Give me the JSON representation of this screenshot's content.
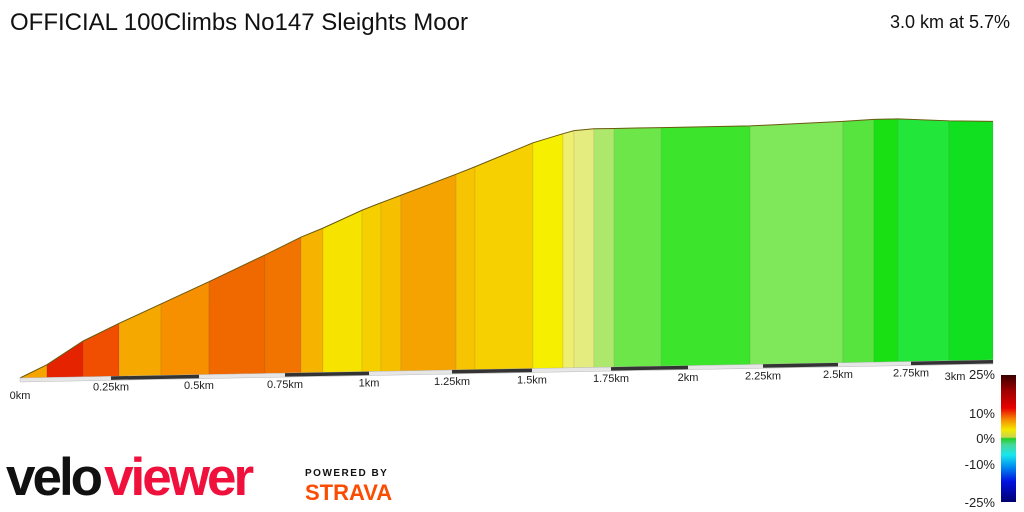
{
  "header": {
    "title": "OFFICIAL 100Climbs No147 Sleights Moor",
    "summary": "3.0 km at 5.7%"
  },
  "chart_data": {
    "type": "area",
    "title": "OFFICIAL 100Climbs No147 Sleights Moor",
    "xlabel": "",
    "ylabel": "",
    "x_tick_labels": [
      "0km",
      "0.25km",
      "0.5km",
      "0.75km",
      "1km",
      "1.25km",
      "1.5km",
      "1.75km",
      "2km",
      "2.25km",
      "2.5km",
      "2.75km",
      "3km"
    ],
    "x_unit": "km",
    "xlim": [
      0,
      3
    ],
    "profile_km": [
      0,
      0.074,
      0.173,
      0.273,
      0.392,
      0.529,
      0.692,
      0.798,
      0.863,
      0.979,
      1.036,
      1.096,
      1.263,
      1.322,
      1.503,
      1.598,
      1.633,
      1.696,
      1.76,
      1.913,
      2.207,
      2.517,
      2.623,
      2.705,
      2.884,
      3.0
    ],
    "elevation_gain_m_estimate": [
      0,
      9,
      25,
      37,
      50,
      65,
      83,
      95,
      101,
      113,
      118,
      123,
      137,
      142,
      158,
      164,
      166,
      167,
      167,
      167,
      167,
      169,
      170,
      170,
      168,
      167
    ],
    "segment_colors": [
      "#f6a400",
      "#e52300",
      "#f04e00",
      "#f5a800",
      "#f69000",
      "#f06800",
      "#f27400",
      "#f6b400",
      "#f6e400",
      "#f6cf00",
      "#f6c000",
      "#f4a300",
      "#f6c400",
      "#f6d000",
      "#f6f000",
      "#eeee70",
      "#e4ec80",
      "#ade86c",
      "#6de64a",
      "#3ce42b",
      "#7ee85a",
      "#58e43e",
      "#18e012",
      "#22e63a",
      "#10e020"
    ],
    "legend": {
      "labels": [
        "25%",
        "10%",
        "0%",
        "-10%",
        "-25%"
      ],
      "placement": "bottom-right"
    }
  },
  "branding": {
    "velo_a": "velo",
    "velo_b": "viewer",
    "powered_by": "POWERED BY",
    "strava": "STRAVA"
  }
}
